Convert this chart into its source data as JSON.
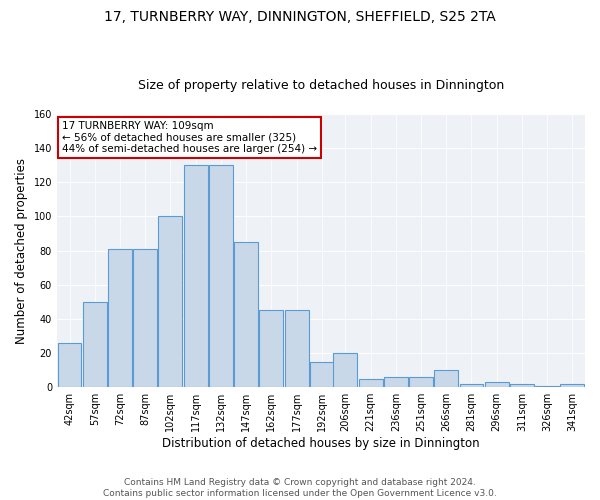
{
  "title": "17, TURNBERRY WAY, DINNINGTON, SHEFFIELD, S25 2TA",
  "subtitle": "Size of property relative to detached houses in Dinnington",
  "xlabel": "Distribution of detached houses by size in Dinnington",
  "ylabel": "Number of detached properties",
  "bar_color": "#c8d8e8",
  "bar_edge_color": "#5b9bd5",
  "background_color": "#eef2f7",
  "bins": [
    42,
    57,
    72,
    87,
    102,
    117,
    132,
    147,
    162,
    177,
    192,
    206,
    221,
    236,
    251,
    266,
    281,
    296,
    311,
    326,
    341
  ],
  "values": [
    26,
    50,
    81,
    81,
    100,
    130,
    130,
    85,
    45,
    45,
    15,
    20,
    5,
    6,
    6,
    10,
    2,
    3,
    2,
    1,
    2
  ],
  "annotation_line1": "17 TURNBERRY WAY: 109sqm",
  "annotation_line2": "← 56% of detached houses are smaller (325)",
  "annotation_line3": "44% of semi-detached houses are larger (254) →",
  "annotation_box_color": "#ffffff",
  "annotation_border_color": "#cc0000",
  "property_size": 109,
  "ylim": [
    0,
    160
  ],
  "yticks": [
    0,
    20,
    40,
    60,
    80,
    100,
    120,
    140,
    160
  ],
  "footer": "Contains HM Land Registry data © Crown copyright and database right 2024.\nContains public sector information licensed under the Open Government Licence v3.0.",
  "title_fontsize": 10,
  "subtitle_fontsize": 9,
  "ylabel_fontsize": 8.5,
  "xlabel_fontsize": 8.5,
  "tick_fontsize": 7,
  "footer_fontsize": 6.5
}
